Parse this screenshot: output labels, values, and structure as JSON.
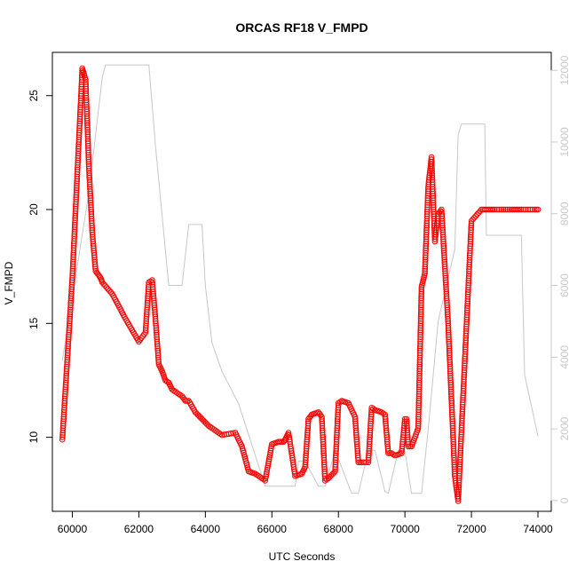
{
  "chart_data": {
    "type": "scatter",
    "title": "ORCAS RF18 V_FMPD",
    "xlabel": "UTC Seconds",
    "ylabel": "V_FMPD",
    "xlim": [
      59400,
      74400
    ],
    "ylim": [
      6.75,
      26.9
    ],
    "y2lim": [
      -300,
      12500
    ],
    "x_ticks": [
      "60000",
      "62000",
      "64000",
      "66000",
      "68000",
      "70000",
      "72000",
      "74000"
    ],
    "y_ticks": [
      "10",
      "15",
      "20",
      "25"
    ],
    "y2_ticks": [
      "0",
      "2000",
      "4000",
      "6000",
      "8000",
      "10000",
      "12000"
    ],
    "grid": false,
    "legend": "none",
    "colors": {
      "points": "#ff0000",
      "altitude_line": "#c8c8c8"
    },
    "series": [
      {
        "marker": "open-circle",
        "axis": "left",
        "x": [
          59700,
          60000,
          60300,
          60400,
          60500,
          60600,
          60700,
          60800,
          60850,
          60900,
          61200,
          61600,
          62000,
          62200,
          62300,
          62400,
          62500,
          62600,
          62700,
          62800,
          62900,
          63000,
          63300,
          63400,
          63500,
          63700,
          63900,
          64100,
          64300,
          64500,
          64900,
          65100,
          65300,
          65500,
          65600,
          65700,
          65800,
          66000,
          66200,
          66350,
          66400,
          66500,
          66700,
          66900,
          67000,
          67100,
          67200,
          67400,
          67500,
          67600,
          67700,
          67900,
          68000,
          68100,
          68300,
          68500,
          68600,
          68700,
          68900,
          69000,
          69100,
          69300,
          69400,
          69500,
          69600,
          69700,
          69900,
          70000,
          70050,
          70100,
          70200,
          70400,
          70500,
          70600,
          70700,
          70800,
          70900,
          71000,
          71100,
          71300,
          71500,
          71600,
          72000,
          72300,
          72400,
          72550,
          72600,
          72700,
          72900,
          73200,
          73350,
          73400,
          73500,
          73700,
          73900,
          74000
        ],
        "y": [
          9.9,
          17.0,
          26.2,
          25.7,
          21.8,
          19.0,
          17.3,
          17.1,
          17.0,
          16.8,
          16.3,
          15.2,
          14.2,
          14.6,
          16.8,
          16.9,
          15.2,
          13.2,
          12.9,
          12.5,
          12.4,
          12.1,
          11.8,
          11.6,
          11.6,
          11.1,
          10.8,
          10.5,
          10.3,
          10.1,
          10.2,
          9.6,
          8.5,
          8.4,
          8.3,
          8.2,
          8.1,
          9.7,
          9.8,
          9.8,
          9.9,
          10.2,
          8.3,
          8.4,
          8.7,
          10.8,
          11.0,
          11.1,
          10.9,
          8.1,
          8.2,
          8.5,
          11.5,
          11.6,
          11.5,
          10.9,
          8.9,
          8.9,
          8.9,
          11.3,
          11.2,
          11.1,
          11.0,
          9.3,
          9.3,
          9.2,
          9.3,
          10.8,
          10.8,
          9.6,
          9.6,
          10.4,
          16.6,
          17.2,
          21.0,
          22.3,
          18.6,
          19.8,
          20.0,
          15.0,
          8.3,
          7.2,
          19.5,
          20.0,
          20.0,
          20.0,
          20.0,
          20.0,
          20.0,
          20.0,
          20.0,
          20.0,
          20.0,
          20.0,
          20.0,
          20.0
        ]
      },
      {
        "marker": "line",
        "axis": "right",
        "x": [
          59700,
          60500,
          60900,
          61000,
          62300,
          62500,
          62900,
          63300,
          63500,
          63900,
          64000,
          64200,
          64500,
          65000,
          65800,
          66000,
          66400,
          66700,
          66800,
          67000,
          67400,
          67500,
          67600,
          67900,
          68400,
          68600,
          68900,
          69100,
          69400,
          69500,
          69800,
          70000,
          70200,
          70500,
          70700,
          71000,
          71500,
          71600,
          71700,
          72400,
          72450,
          72500,
          72900,
          73500,
          73600,
          74000
        ],
        "y": [
          3900,
          8600,
          11800,
          12150,
          12150,
          9900,
          6000,
          6000,
          7700,
          7700,
          6000,
          4400,
          3600,
          2700,
          400,
          400,
          400,
          400,
          1100,
          1100,
          400,
          400,
          400,
          1400,
          200,
          200,
          1400,
          1400,
          250,
          200,
          1400,
          1400,
          200,
          200,
          2000,
          5000,
          7000,
          10200,
          10500,
          10500,
          7400,
          7400,
          7400,
          7400,
          3500,
          1800
        ]
      }
    ]
  }
}
